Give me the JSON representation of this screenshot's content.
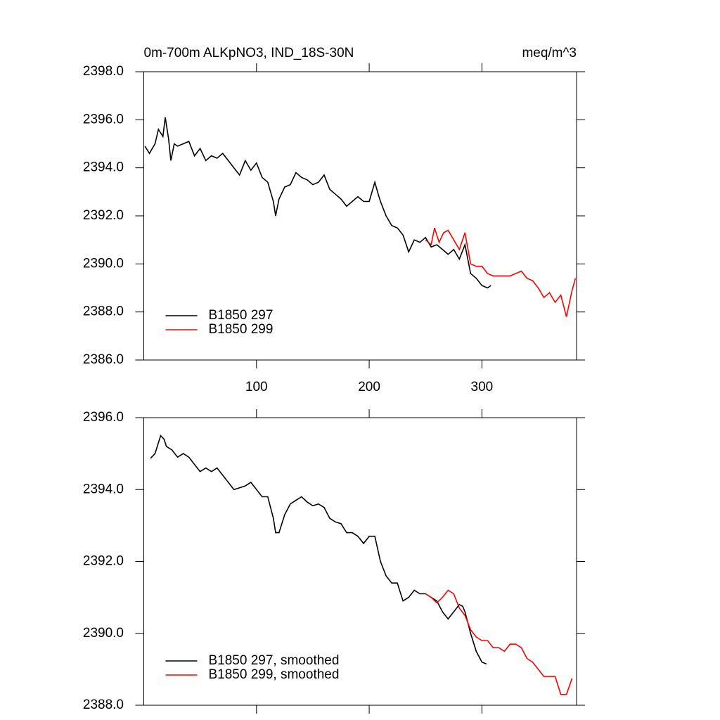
{
  "chart_data": [
    {
      "type": "line",
      "title": "0m-700m ALKpNO3, IND_18S-30N",
      "units": "meq/m^3",
      "xlim": [
        0,
        384
      ],
      "xticks": [
        100,
        200,
        300
      ],
      "xtick_labels": true,
      "ylim": [
        2386,
        2398
      ],
      "yticks": [
        {
          "value": 2386,
          "label": "2386.0"
        },
        {
          "value": 2388,
          "label": "2388.0"
        },
        {
          "value": 2390,
          "label": "2390.0"
        },
        {
          "value": 2392,
          "label": "2392.0"
        },
        {
          "value": 2394,
          "label": "2394.0"
        },
        {
          "value": 2396,
          "label": "2396.0"
        },
        {
          "value": 2398,
          "label": "2398.0"
        }
      ],
      "legend": "lower left",
      "series": [
        {
          "name": "B1850 297",
          "color": "#000000",
          "x": [
            1,
            5,
            10,
            13,
            17,
            19,
            22,
            24,
            27,
            30,
            35,
            40,
            45,
            50,
            55,
            60,
            65,
            70,
            75,
            80,
            85,
            90,
            95,
            100,
            105,
            110,
            115,
            117,
            120,
            125,
            130,
            135,
            140,
            145,
            150,
            155,
            160,
            165,
            170,
            175,
            180,
            185,
            190,
            195,
            200,
            205,
            208,
            210,
            215,
            220,
            225,
            230,
            235,
            240,
            245,
            250,
            255,
            260,
            265,
            270,
            275,
            280,
            285,
            290,
            295,
            300,
            305,
            308
          ],
          "values": [
            2394.9,
            2394.6,
            2395.0,
            2395.6,
            2395.3,
            2396.1,
            2395.2,
            2394.3,
            2395.0,
            2394.9,
            2395.0,
            2395.1,
            2394.5,
            2394.8,
            2394.3,
            2394.5,
            2394.4,
            2394.6,
            2394.3,
            2394.0,
            2393.7,
            2394.3,
            2393.9,
            2394.2,
            2393.6,
            2393.4,
            2392.6,
            2392.0,
            2392.7,
            2393.2,
            2393.3,
            2393.8,
            2393.6,
            2393.5,
            2393.3,
            2393.4,
            2393.7,
            2393.1,
            2392.9,
            2392.7,
            2392.4,
            2392.6,
            2392.8,
            2392.6,
            2392.6,
            2393.4,
            2392.9,
            2392.6,
            2392.0,
            2391.6,
            2391.5,
            2391.2,
            2390.5,
            2391.0,
            2390.9,
            2391.1,
            2390.7,
            2390.8,
            2390.6,
            2390.4,
            2390.6,
            2390.2,
            2390.8,
            2389.6,
            2389.4,
            2389.1,
            2389.0,
            2389.1
          ]
        },
        {
          "name": "B1850 299",
          "color": "#ff0000",
          "x": [
            250,
            255,
            258,
            262,
            266,
            270,
            275,
            280,
            285,
            290,
            295,
            300,
            305,
            310,
            315,
            320,
            325,
            330,
            335,
            340,
            345,
            350,
            355,
            360,
            365,
            370,
            375,
            380,
            383
          ],
          "values": [
            2391.0,
            2390.8,
            2391.5,
            2390.9,
            2391.3,
            2391.4,
            2391.0,
            2390.6,
            2391.3,
            2390.0,
            2389.9,
            2389.9,
            2389.6,
            2389.5,
            2389.5,
            2389.5,
            2389.5,
            2389.6,
            2389.7,
            2389.4,
            2389.3,
            2389.0,
            2388.6,
            2388.8,
            2388.4,
            2388.7,
            2387.8,
            2388.9,
            2389.4
          ]
        }
      ]
    },
    {
      "type": "line",
      "xlim": [
        0,
        384
      ],
      "xticks": [
        100,
        200,
        300
      ],
      "xtick_labels": false,
      "ylim": [
        2388,
        2396
      ],
      "yticks": [
        {
          "value": 2388,
          "label": "2388.0"
        },
        {
          "value": 2390,
          "label": "2390.0"
        },
        {
          "value": 2392,
          "label": "2392.0"
        },
        {
          "value": 2394,
          "label": "2394.0"
        },
        {
          "value": 2396,
          "label": "2396.0"
        }
      ],
      "legend": "lower left",
      "series": [
        {
          "name": "B1850 297, smoothed",
          "color": "#000000",
          "x": [
            6,
            10,
            13,
            15,
            18,
            20,
            25,
            30,
            35,
            40,
            45,
            50,
            55,
            60,
            65,
            70,
            75,
            80,
            85,
            90,
            95,
            100,
            105,
            110,
            115,
            117,
            120,
            125,
            130,
            135,
            140,
            145,
            150,
            155,
            160,
            165,
            170,
            175,
            180,
            185,
            190,
            195,
            200,
            205,
            210,
            215,
            220,
            225,
            230,
            235,
            240,
            245,
            250,
            255,
            260,
            265,
            270,
            275,
            280,
            283,
            285,
            290,
            295,
            300,
            304
          ],
          "values": [
            2394.87,
            2395.0,
            2395.3,
            2395.5,
            2395.4,
            2395.2,
            2395.1,
            2394.9,
            2395.0,
            2394.9,
            2394.7,
            2394.5,
            2394.6,
            2394.5,
            2394.6,
            2394.4,
            2394.2,
            2394.0,
            2394.05,
            2394.1,
            2394.2,
            2394.0,
            2393.8,
            2393.8,
            2393.2,
            2392.8,
            2392.8,
            2393.3,
            2393.6,
            2393.7,
            2393.8,
            2393.65,
            2393.55,
            2393.6,
            2393.5,
            2393.2,
            2393.1,
            2393.05,
            2392.8,
            2392.8,
            2392.7,
            2392.5,
            2392.7,
            2392.7,
            2392.0,
            2391.6,
            2391.4,
            2391.4,
            2390.9,
            2391.0,
            2391.2,
            2391.1,
            2391.1,
            2391.0,
            2390.9,
            2390.6,
            2390.4,
            2390.6,
            2390.8,
            2390.75,
            2390.6,
            2390.0,
            2389.5,
            2389.2,
            2389.15
          ]
        },
        {
          "name": "B1850 299, smoothed",
          "color": "#ff0000",
          "x": [
            250,
            255,
            260,
            265,
            270,
            275,
            280,
            285,
            290,
            295,
            300,
            305,
            310,
            315,
            320,
            325,
            330,
            335,
            340,
            345,
            350,
            355,
            360,
            365,
            370,
            375,
            380
          ],
          "values": [
            2391.1,
            2391.0,
            2390.85,
            2391.0,
            2391.2,
            2391.1,
            2390.7,
            2390.5,
            2390.1,
            2389.9,
            2389.8,
            2389.8,
            2389.6,
            2389.6,
            2389.5,
            2389.7,
            2389.7,
            2389.6,
            2389.3,
            2389.2,
            2389.0,
            2388.8,
            2388.8,
            2388.8,
            2388.3,
            2388.3,
            2388.75
          ]
        }
      ]
    }
  ]
}
